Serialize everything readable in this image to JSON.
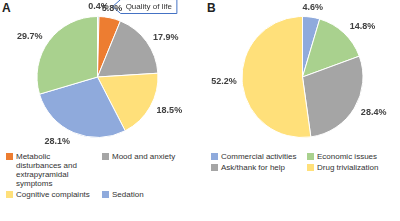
{
  "chart_data": [
    {
      "type": "pie",
      "title": "A",
      "categories": [
        null,
        "Metabolic disturbances and extrapyramidal symptoms",
        "Mood and anxiety",
        "Cognitive complaints",
        "Sedation",
        null
      ],
      "values": [
        0.4,
        5.8,
        17.9,
        18.5,
        28.1,
        29.7
      ],
      "value_labels": [
        "0.4%",
        "5.8%",
        "17.9%",
        "18.5%",
        "28.1%",
        "29.7%"
      ],
      "colors": [
        "#5b9bd5",
        "#ed7d31",
        "#a5a5a5",
        "#ffe07a",
        "#8faadc",
        "#a9d18e"
      ],
      "data_labels": true,
      "legend": "bottom",
      "annotations": [
        {
          "text": "Quality of life",
          "index": 0
        }
      ]
    },
    {
      "type": "pie",
      "title": "B",
      "categories": [
        "Commercial activities",
        "Economic issues",
        "Ask/thank for help",
        "Drug trivialization"
      ],
      "values": [
        4.6,
        14.8,
        28.4,
        52.2
      ],
      "value_labels": [
        "4.6%",
        "14.8%",
        "28.4%",
        "52.2%"
      ],
      "colors": [
        "#8faadc",
        "#a9d18e",
        "#a5a5a5",
        "#ffe07a"
      ],
      "data_labels": true,
      "legend": "bottom"
    }
  ]
}
